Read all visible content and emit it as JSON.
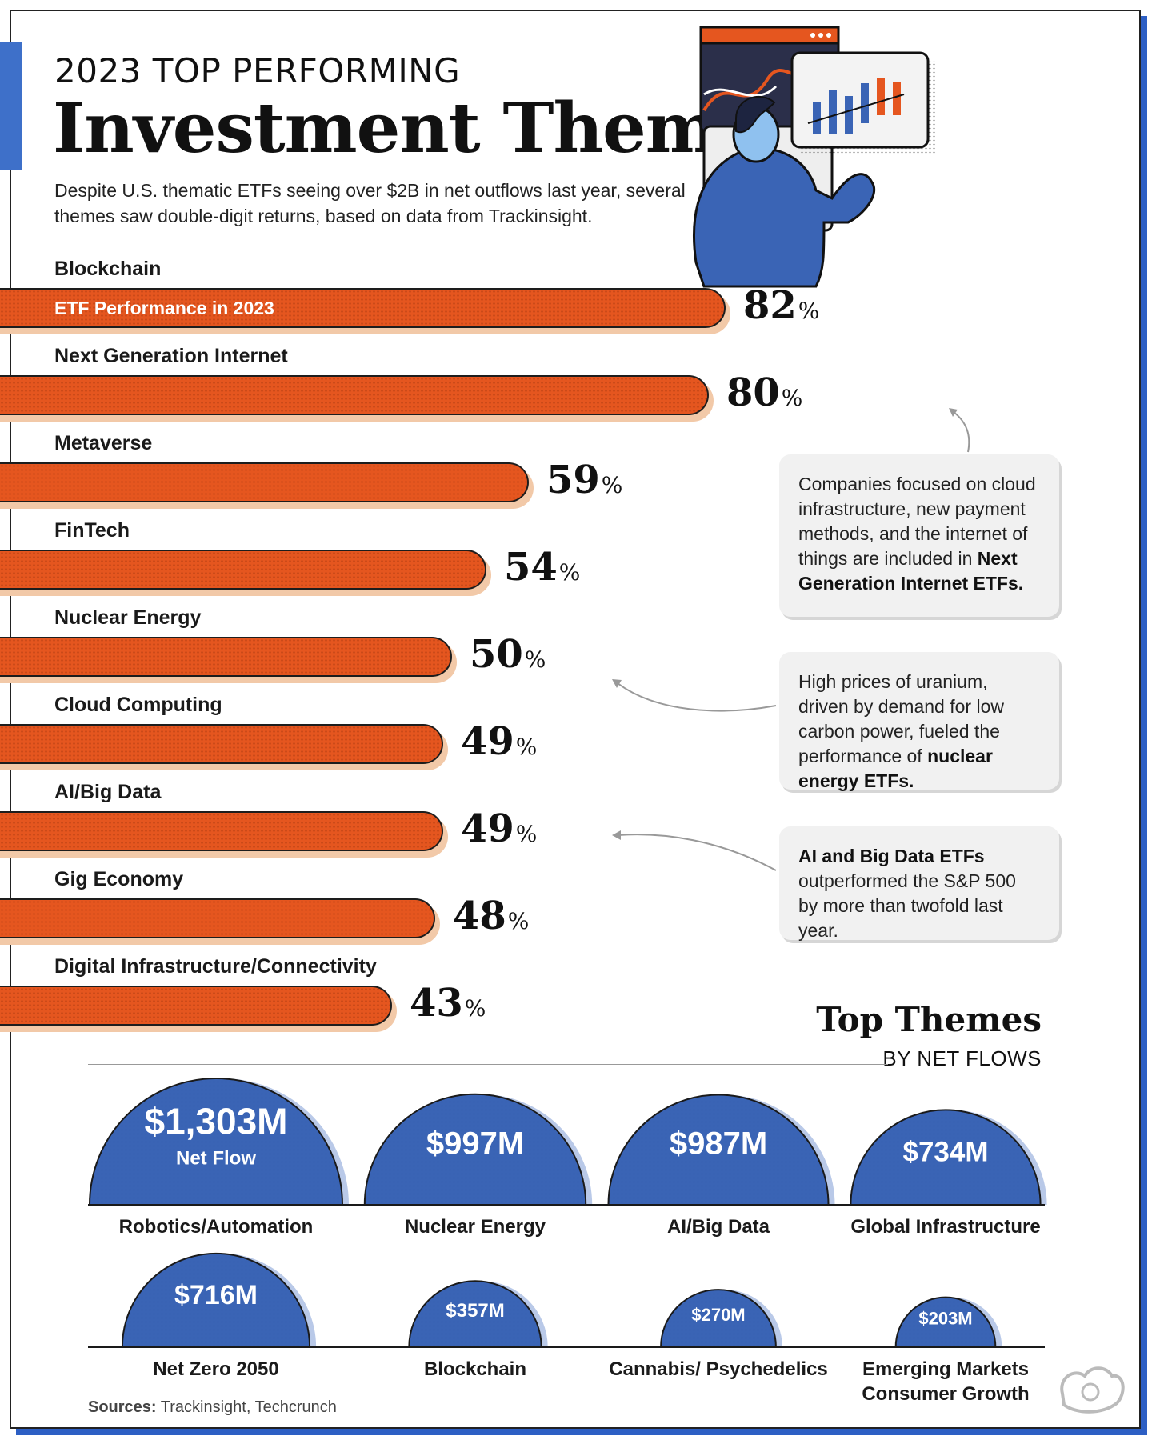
{
  "header": {
    "kicker": "2023 TOP PERFORMING",
    "title": "Investment Themes",
    "subtitle": "Despite U.S. thematic ETFs seeing over $2B in net outflows last year, several themes saw double-digit returns, based on data from Trackinsight."
  },
  "chart_data": [
    {
      "type": "bar",
      "orientation": "horizontal",
      "series_label": "ETF Performance in 2023",
      "unit": "%",
      "categories": [
        "Blockchain",
        "Next Generation Internet",
        "Metaverse",
        "FinTech",
        "Nuclear Energy",
        "Cloud Computing",
        "AI/Big Data",
        "Gig Economy",
        "Digital Infrastructure/Connectivity"
      ],
      "values": [
        82,
        80,
        59,
        54,
        50,
        49,
        49,
        48,
        43
      ],
      "colors": {
        "bar": "#e5561f",
        "bar_shadow": "#f2c9a8"
      }
    },
    {
      "type": "bar",
      "style": "semicircle",
      "title": "Top Themes",
      "subtitle": "BY NET FLOWS",
      "value_suffix": "Net Flow",
      "categories": [
        "Robotics/Automation",
        "Nuclear Energy",
        "AI/Big Data",
        "Global Infrastructure",
        "Net Zero 2050",
        "Blockchain",
        "Cannabis/ Psychedelics",
        "Emerging Markets Consumer Growth"
      ],
      "values": [
        1303,
        997,
        987,
        734,
        716,
        357,
        270,
        203
      ],
      "value_labels": [
        "$1,303M",
        "$997M",
        "$987M",
        "$734M",
        "$716M",
        "$357M",
        "$270M",
        "$203M"
      ],
      "colors": {
        "dome": "#3a64b5",
        "dome_shadow": "#b9c9e8"
      }
    }
  ],
  "callouts": [
    {
      "text": "Companies focused on cloud infrastructure, new payment methods, and the internet of things are included in ",
      "bold": "Next Generation Internet ETFs."
    },
    {
      "text": "High prices of uranium, driven by demand for low carbon power, fueled the performance of ",
      "bold": "nuclear energy ETFs."
    },
    {
      "bold": "AI and Big Data ETFs",
      "text": " outperformed the S&P 500 by more than twofold last year."
    }
  ],
  "sources": {
    "label": "Sources:",
    "text": " Trackinsight, Techcrunch"
  },
  "icons": [
    "person-at-monitor-illustration",
    "logo-icon"
  ]
}
